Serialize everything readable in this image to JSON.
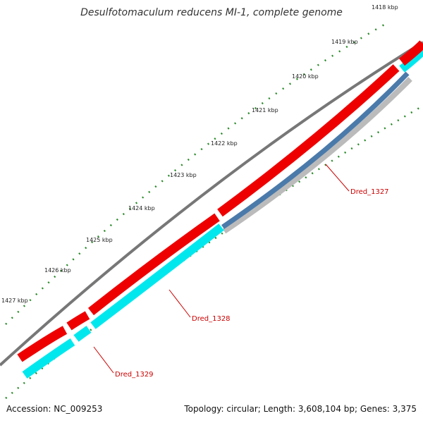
{
  "title": "Desulfotomaculum reducens MI-1, complete genome",
  "footer": {
    "accession": "Accession: NC_009253",
    "summary": "Topology: circular; Length: 3,608,104 bp; Genes: 3,375"
  },
  "kbp_labels": [
    "1418 kbp",
    "1419 kbp",
    "1420 kbp",
    "1421 kbp",
    "1422 kbp",
    "1423 kbp",
    "1424 kbp",
    "1425 kbp",
    "1426 kbp",
    "1427 kbp"
  ],
  "gene_labels": [
    "Dred_1327",
    "Dred_1328",
    "Dred_1329"
  ],
  "colors": {
    "backbone": "#777777",
    "cds": "#ee0000",
    "cds_highlight": "#ff6060",
    "cyan": "#00e8ee",
    "steelblue": "#4a7aaa",
    "lightgray": "#bbbbbb",
    "tick": "#2a8a2a",
    "label": "#cc0000"
  }
}
